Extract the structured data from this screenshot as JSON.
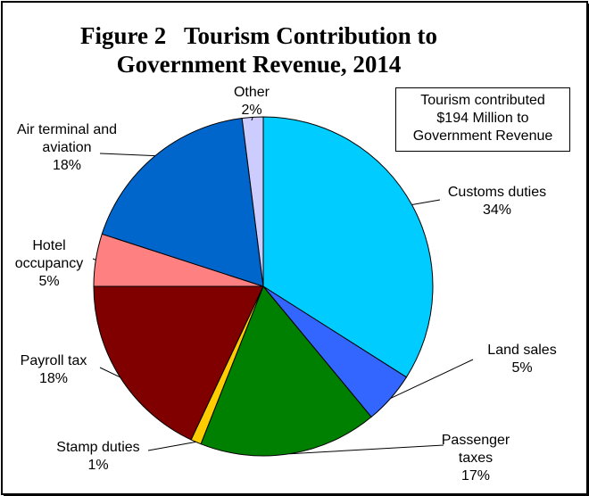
{
  "title_lines": [
    "Figure 2   Tourism Contribution to",
    "Government Revenue, 2014"
  ],
  "note_lines": [
    "Tourism contributed",
    "$194 Million to",
    "Government Revenue"
  ],
  "chart_data": {
    "type": "pie",
    "title": "Figure 2   Tourism Contribution to Government Revenue, 2014",
    "unit": "%",
    "slices": [
      {
        "label": "Customs duties",
        "value": 34,
        "color": "#00ccff"
      },
      {
        "label": "Land sales",
        "value": 5,
        "color": "#3366ff"
      },
      {
        "label": "Passenger taxes",
        "value": 17,
        "color": "#008000"
      },
      {
        "label": "Stamp duties",
        "value": 1,
        "color": "#ffcc00"
      },
      {
        "label": "Payroll tax",
        "value": 18,
        "color": "#800000"
      },
      {
        "label": "Hotel occupancy",
        "value": 5,
        "color": "#ff8080"
      },
      {
        "label": "Air terminal and aviation",
        "value": 18,
        "color": "#0066cc"
      },
      {
        "label": "Other",
        "value": 2,
        "color": "#ccccff"
      }
    ],
    "labels": [
      {
        "lines": [
          "Customs duties",
          "34%"
        ]
      },
      {
        "lines": [
          "Land sales",
          "5%"
        ]
      },
      {
        "lines": [
          "Passenger",
          "taxes",
          "17%"
        ]
      },
      {
        "lines": [
          "Stamp duties",
          "1%"
        ]
      },
      {
        "lines": [
          "Payroll tax",
          "18%"
        ]
      },
      {
        "lines": [
          "Hotel",
          "occupancy",
          "5%"
        ]
      },
      {
        "lines": [
          "Air terminal and",
          "aviation",
          "18%"
        ]
      },
      {
        "lines": [
          "Other",
          "2%"
        ]
      }
    ],
    "start_angle_deg": 0,
    "direction": "clockwise",
    "legend": "none"
  }
}
